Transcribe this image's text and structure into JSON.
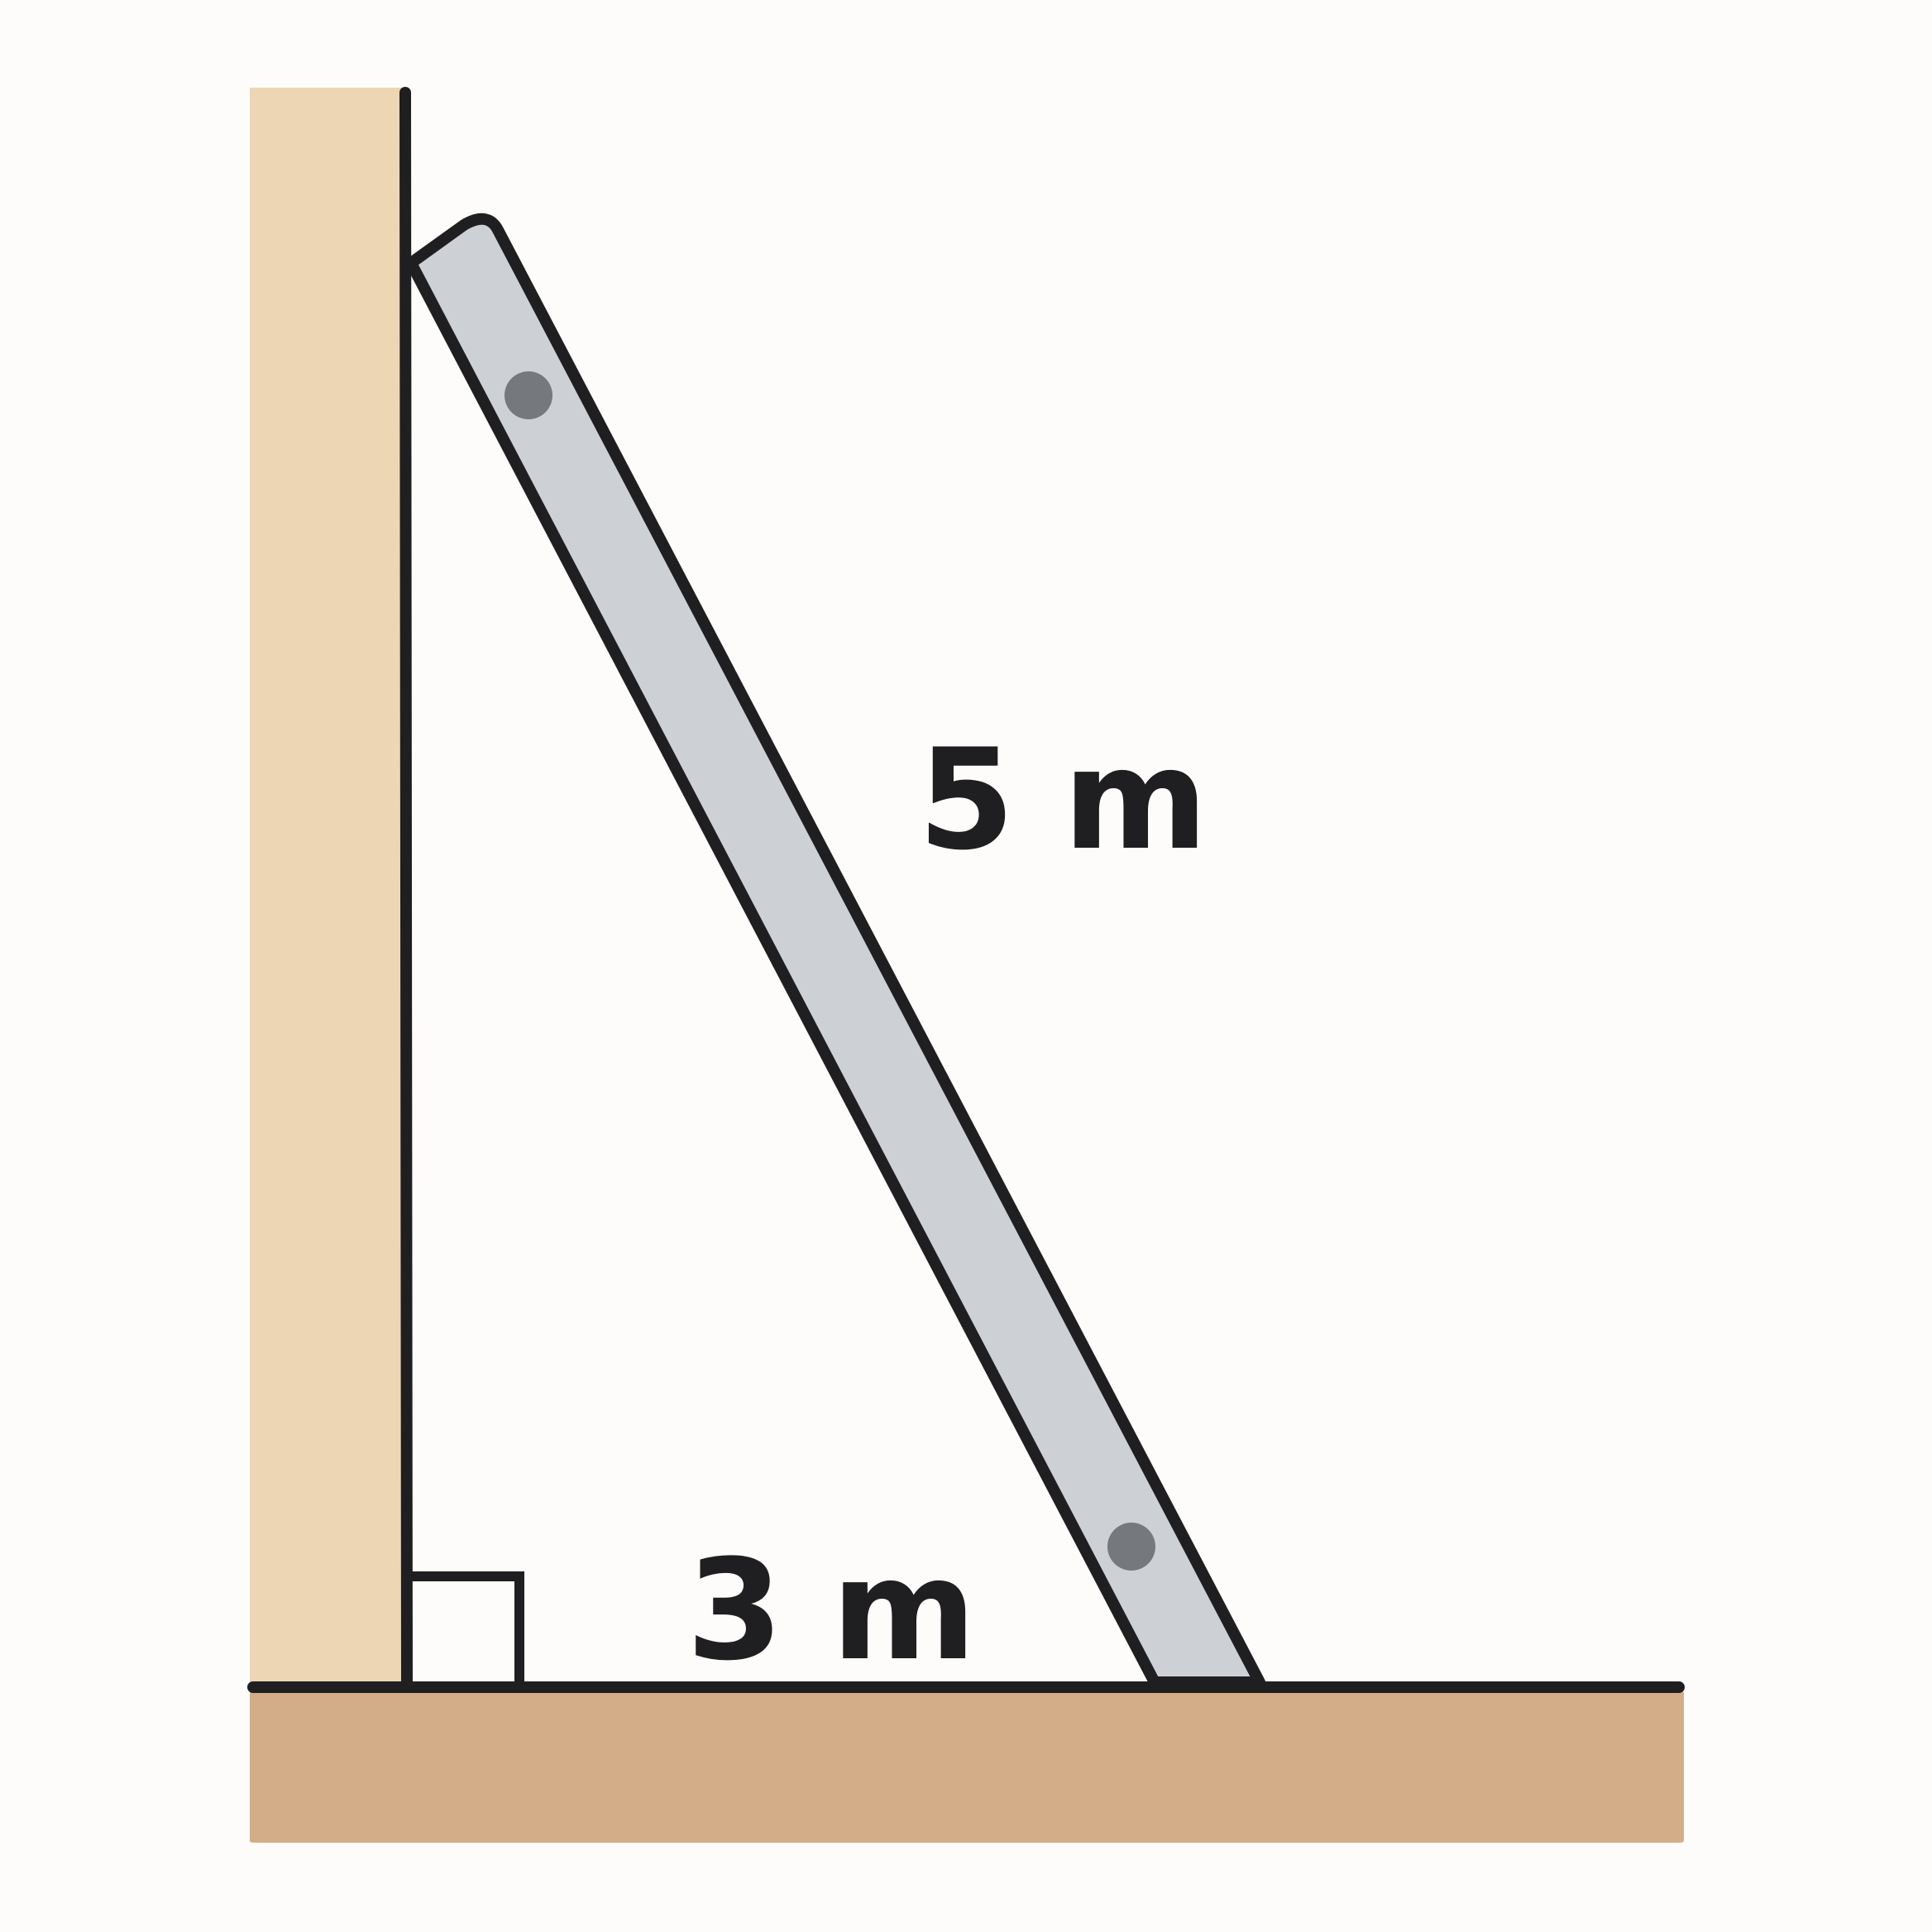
{
  "diagram": {
    "ladder_length_label": "5 m",
    "base_distance_label": "3 m"
  },
  "colors": {
    "background": "#fefcfa",
    "wall": "#edd6b4",
    "ground": "#d3ad88",
    "ladder": "#cdd1d6",
    "rivet": "#75787d",
    "stroke": "#1f1f21"
  }
}
